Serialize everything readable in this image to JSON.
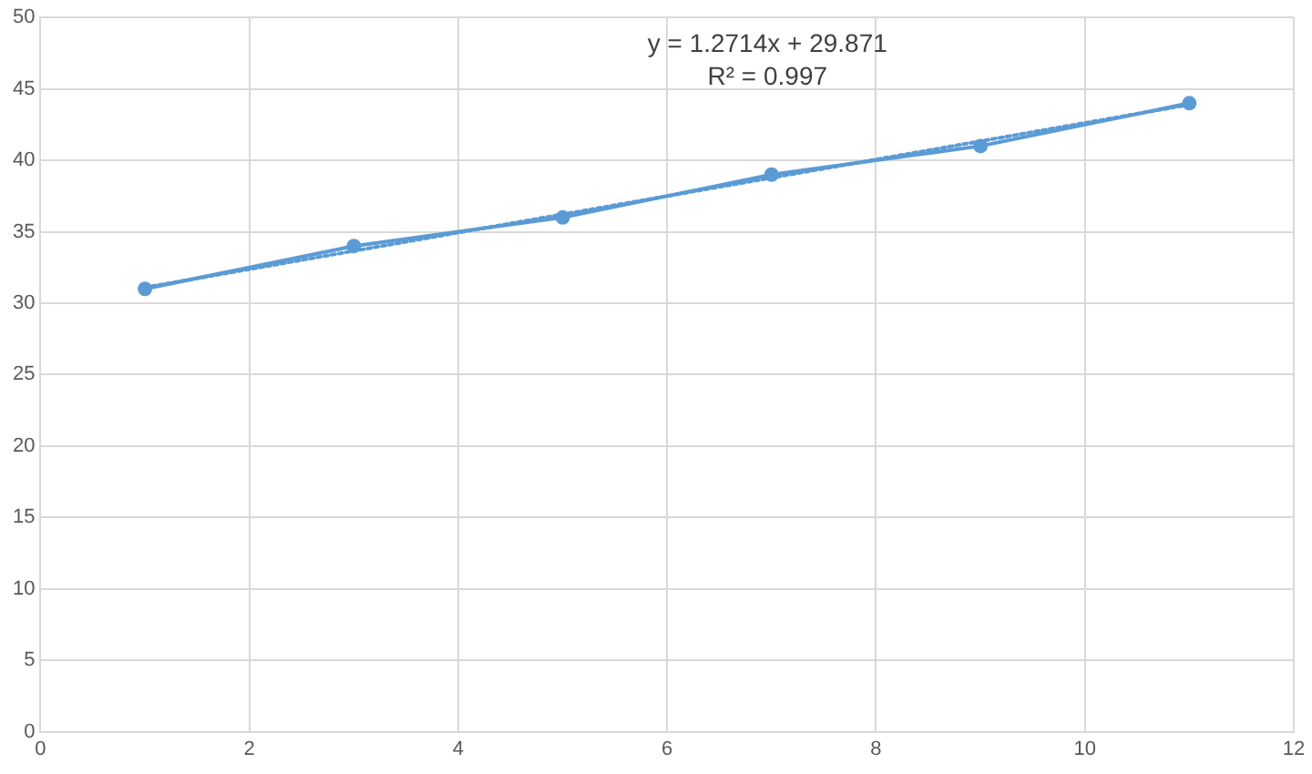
{
  "chart_data": {
    "type": "line",
    "xlim": [
      0,
      12
    ],
    "xticks": [
      0,
      2,
      4,
      6,
      8,
      10,
      12
    ],
    "ylim": [
      0,
      50
    ],
    "yticks": [
      0,
      5,
      10,
      15,
      20,
      25,
      30,
      35,
      40,
      45,
      50
    ],
    "grid": true,
    "legend": false,
    "annotations": [
      "y = 1.2714x + 29.871",
      "R² = 0.997"
    ],
    "series": [
      {
        "color": "#5b9bd5",
        "x": [
          1,
          3,
          5,
          7,
          9,
          11
        ],
        "values": [
          31,
          34,
          36,
          39,
          41,
          44
        ],
        "marker": "circle",
        "line_style": "solid"
      },
      {
        "type": "line",
        "color": "#5b9bd5",
        "x": [
          1,
          11
        ],
        "values": [
          31.1,
          43.9
        ],
        "marker": "none",
        "line_style": "dotted"
      }
    ]
  }
}
